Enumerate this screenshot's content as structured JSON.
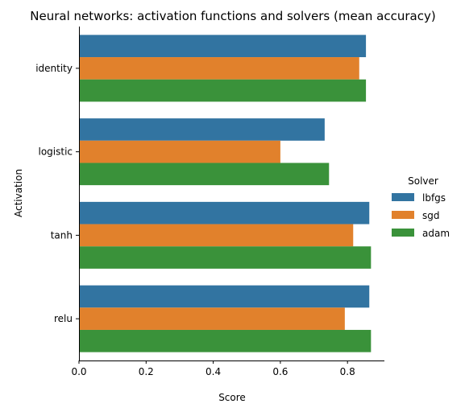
{
  "chart_data": {
    "type": "bar",
    "orientation": "horizontal",
    "title": "Neural networks: activation functions and solvers (mean accuracy)",
    "xlabel": "Score",
    "ylabel": "Activation",
    "xlim": [
      0,
      0.91
    ],
    "xticks": [
      "0.0",
      "0.2",
      "0.4",
      "0.6",
      "0.8"
    ],
    "categories": [
      "identity",
      "logistic",
      "tanh",
      "relu"
    ],
    "legend_title": "Solver",
    "legend_position": "right",
    "series": [
      {
        "name": "lbfgs",
        "color": "#3274a1",
        "values": [
          0.855,
          0.732,
          0.865,
          0.865
        ]
      },
      {
        "name": "sgd",
        "color": "#e1812c",
        "values": [
          0.835,
          0.6,
          0.817,
          0.792
        ]
      },
      {
        "name": "adam",
        "color": "#3a923a",
        "values": [
          0.855,
          0.745,
          0.87,
          0.87
        ]
      }
    ]
  }
}
